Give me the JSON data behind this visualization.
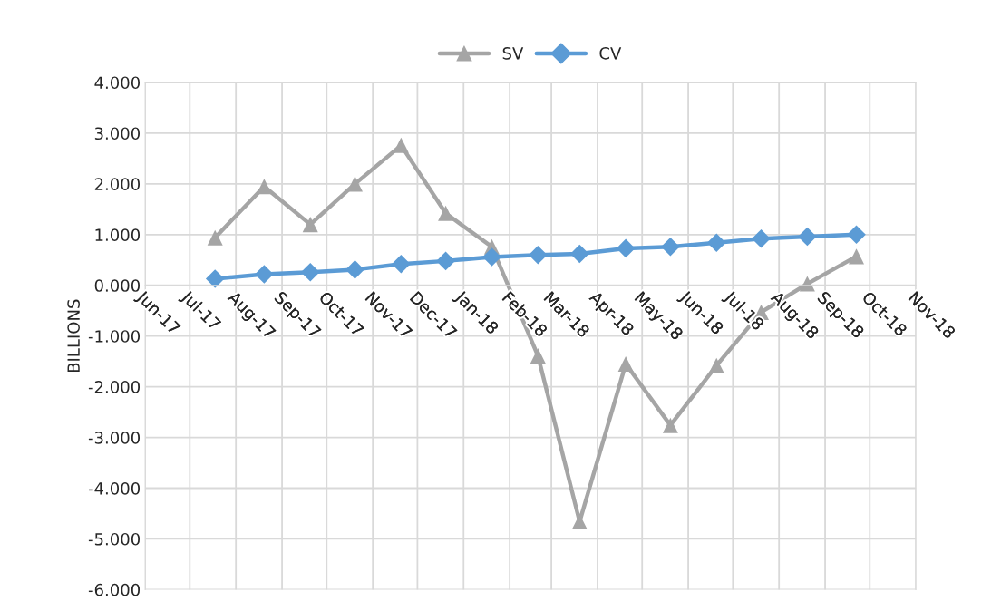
{
  "chart_data": {
    "type": "line",
    "ylabel": "BILLIONS",
    "x": [
      "2017-07-18",
      "2017-08-20",
      "2017-09-20",
      "2017-10-20",
      "2017-11-20",
      "2017-12-20",
      "2018-01-20",
      "2018-02-20",
      "2018-03-20",
      "2018-04-20",
      "2018-05-20",
      "2018-06-20",
      "2018-07-20",
      "2018-08-20",
      "2018-09-22"
    ],
    "series": [
      {
        "name": "SV",
        "color": "#a5a5a5",
        "marker": "triangle",
        "values": [
          0.94,
          1.95,
          1.2,
          2.0,
          2.76,
          1.42,
          0.76,
          -1.39,
          -4.66,
          -1.55,
          -2.76,
          -1.58,
          -0.53,
          0.03,
          0.57
        ]
      },
      {
        "name": "CV",
        "color": "#5b9bd5",
        "marker": "diamond",
        "values": [
          0.13,
          0.22,
          0.26,
          0.31,
          0.42,
          0.48,
          0.56,
          0.6,
          0.62,
          0.73,
          0.76,
          0.84,
          0.92,
          0.96,
          1.0
        ]
      }
    ],
    "xlim": [
      "2017-06-01",
      "2018-11-01"
    ],
    "xticks": [
      {
        "value": "2017-06-01",
        "label": "Jun-17"
      },
      {
        "value": "2017-07-01",
        "label": "Jul-17"
      },
      {
        "value": "2017-08-01",
        "label": "Aug-17"
      },
      {
        "value": "2017-09-01",
        "label": "Sep-17"
      },
      {
        "value": "2017-10-01",
        "label": "Oct-17"
      },
      {
        "value": "2017-11-01",
        "label": "Nov-17"
      },
      {
        "value": "2017-12-01",
        "label": "Dec-17"
      },
      {
        "value": "2018-01-01",
        "label": "Jan-18"
      },
      {
        "value": "2018-02-01",
        "label": "Feb-18"
      },
      {
        "value": "2018-03-01",
        "label": "Mar-18"
      },
      {
        "value": "2018-04-01",
        "label": "Apr-18"
      },
      {
        "value": "2018-05-01",
        "label": "May-18"
      },
      {
        "value": "2018-06-01",
        "label": "Jun-18"
      },
      {
        "value": "2018-07-01",
        "label": "Jul-18"
      },
      {
        "value": "2018-08-01",
        "label": "Aug-18"
      },
      {
        "value": "2018-09-01",
        "label": "Sep-18"
      },
      {
        "value": "2018-10-01",
        "label": "Oct-18"
      },
      {
        "value": "2018-11-01",
        "label": "Nov-18"
      }
    ],
    "ylim": [
      -6,
      4
    ],
    "yticks": [
      {
        "value": 4,
        "label": "4.000"
      },
      {
        "value": 3,
        "label": "3.000"
      },
      {
        "value": 2,
        "label": "2.000"
      },
      {
        "value": 1,
        "label": "1.000"
      },
      {
        "value": 0,
        "label": "0.000"
      },
      {
        "value": -1,
        "label": "-1.000"
      },
      {
        "value": -2,
        "label": "-2.000"
      },
      {
        "value": -3,
        "label": "-3.000"
      },
      {
        "value": -4,
        "label": "-4.000"
      },
      {
        "value": -5,
        "label": "-5.000"
      },
      {
        "value": -6,
        "label": "-6.000"
      }
    ],
    "grid": true,
    "legend": "top"
  }
}
